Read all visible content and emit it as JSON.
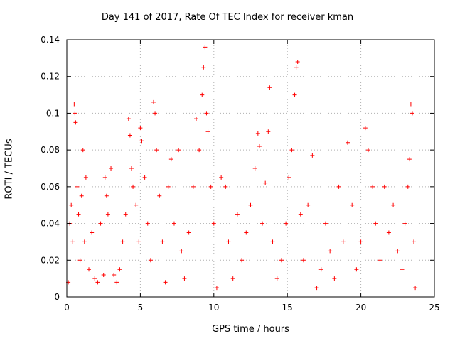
{
  "chart_data": {
    "type": "scatter",
    "title": "Day 141 of 2017, Rate Of TEC Index for receiver kman",
    "xlabel": "GPS time / hours",
    "ylabel": "ROTI / TECUs",
    "xlim": [
      0,
      25
    ],
    "ylim": [
      0,
      0.14
    ],
    "xticks": [
      0,
      5,
      10,
      15,
      20,
      25
    ],
    "yticks": [
      0,
      0.02,
      0.04,
      0.06,
      0.08,
      0.1,
      0.12,
      0.14
    ],
    "ytick_labels": [
      "0",
      "0.02",
      "0.04",
      "0.06",
      "0.08",
      "0.1",
      "0.12",
      "0.14"
    ],
    "grid": true,
    "marker": "plus",
    "color": "#ff0000",
    "series": [
      {
        "points": [
          [
            0.1,
            0.008
          ],
          [
            0.2,
            0.04
          ],
          [
            0.3,
            0.05
          ],
          [
            0.4,
            0.03
          ],
          [
            0.5,
            0.105
          ],
          [
            0.55,
            0.1
          ],
          [
            0.6,
            0.095
          ],
          [
            0.7,
            0.06
          ],
          [
            0.8,
            0.045
          ],
          [
            0.9,
            0.02
          ],
          [
            1.0,
            0.055
          ],
          [
            1.1,
            0.08
          ],
          [
            1.2,
            0.03
          ],
          [
            1.3,
            0.065
          ],
          [
            1.5,
            0.015
          ],
          [
            1.7,
            0.035
          ],
          [
            1.9,
            0.01
          ],
          [
            2.1,
            0.008
          ],
          [
            2.3,
            0.04
          ],
          [
            2.5,
            0.012
          ],
          [
            2.6,
            0.065
          ],
          [
            2.7,
            0.055
          ],
          [
            2.8,
            0.045
          ],
          [
            3.0,
            0.07
          ],
          [
            3.2,
            0.012
          ],
          [
            3.4,
            0.008
          ],
          [
            3.6,
            0.015
          ],
          [
            3.8,
            0.03
          ],
          [
            4.0,
            0.045
          ],
          [
            4.2,
            0.097
          ],
          [
            4.3,
            0.088
          ],
          [
            4.4,
            0.07
          ],
          [
            4.5,
            0.06
          ],
          [
            4.7,
            0.05
          ],
          [
            4.9,
            0.03
          ],
          [
            5.0,
            0.092
          ],
          [
            5.1,
            0.085
          ],
          [
            5.3,
            0.065
          ],
          [
            5.5,
            0.04
          ],
          [
            5.7,
            0.02
          ],
          [
            5.9,
            0.106
          ],
          [
            6.0,
            0.1
          ],
          [
            6.1,
            0.08
          ],
          [
            6.3,
            0.055
          ],
          [
            6.5,
            0.03
          ],
          [
            6.7,
            0.008
          ],
          [
            6.9,
            0.06
          ],
          [
            7.1,
            0.075
          ],
          [
            7.3,
            0.04
          ],
          [
            7.6,
            0.08
          ],
          [
            7.8,
            0.025
          ],
          [
            8.0,
            0.01
          ],
          [
            8.3,
            0.035
          ],
          [
            8.6,
            0.06
          ],
          [
            8.8,
            0.097
          ],
          [
            9.0,
            0.08
          ],
          [
            9.2,
            0.11
          ],
          [
            9.3,
            0.125
          ],
          [
            9.4,
            0.136
          ],
          [
            9.5,
            0.1
          ],
          [
            9.6,
            0.09
          ],
          [
            9.8,
            0.06
          ],
          [
            10.0,
            0.04
          ],
          [
            10.2,
            0.005
          ],
          [
            10.5,
            0.065
          ],
          [
            10.8,
            0.06
          ],
          [
            11.0,
            0.03
          ],
          [
            11.3,
            0.01
          ],
          [
            11.6,
            0.045
          ],
          [
            11.9,
            0.02
          ],
          [
            12.2,
            0.035
          ],
          [
            12.5,
            0.05
          ],
          [
            12.8,
            0.07
          ],
          [
            13.0,
            0.089
          ],
          [
            13.1,
            0.082
          ],
          [
            13.3,
            0.04
          ],
          [
            13.5,
            0.062
          ],
          [
            13.7,
            0.09
          ],
          [
            13.8,
            0.114
          ],
          [
            14.0,
            0.03
          ],
          [
            14.3,
            0.01
          ],
          [
            14.6,
            0.02
          ],
          [
            14.9,
            0.04
          ],
          [
            15.1,
            0.065
          ],
          [
            15.3,
            0.08
          ],
          [
            15.5,
            0.11
          ],
          [
            15.6,
            0.125
          ],
          [
            15.7,
            0.128
          ],
          [
            15.9,
            0.045
          ],
          [
            16.1,
            0.02
          ],
          [
            16.4,
            0.05
          ],
          [
            16.7,
            0.077
          ],
          [
            17.0,
            0.005
          ],
          [
            17.3,
            0.015
          ],
          [
            17.6,
            0.04
          ],
          [
            17.9,
            0.025
          ],
          [
            18.2,
            0.01
          ],
          [
            18.5,
            0.06
          ],
          [
            18.8,
            0.03
          ],
          [
            19.1,
            0.084
          ],
          [
            19.4,
            0.05
          ],
          [
            19.7,
            0.015
          ],
          [
            20.0,
            0.03
          ],
          [
            20.3,
            0.092
          ],
          [
            20.5,
            0.08
          ],
          [
            20.8,
            0.06
          ],
          [
            21.0,
            0.04
          ],
          [
            21.3,
            0.02
          ],
          [
            21.6,
            0.06
          ],
          [
            21.9,
            0.035
          ],
          [
            22.2,
            0.05
          ],
          [
            22.5,
            0.025
          ],
          [
            22.8,
            0.015
          ],
          [
            23.0,
            0.04
          ],
          [
            23.2,
            0.06
          ],
          [
            23.3,
            0.075
          ],
          [
            23.4,
            0.105
          ],
          [
            23.5,
            0.1
          ],
          [
            23.6,
            0.03
          ],
          [
            23.7,
            0.005
          ]
        ]
      }
    ]
  }
}
